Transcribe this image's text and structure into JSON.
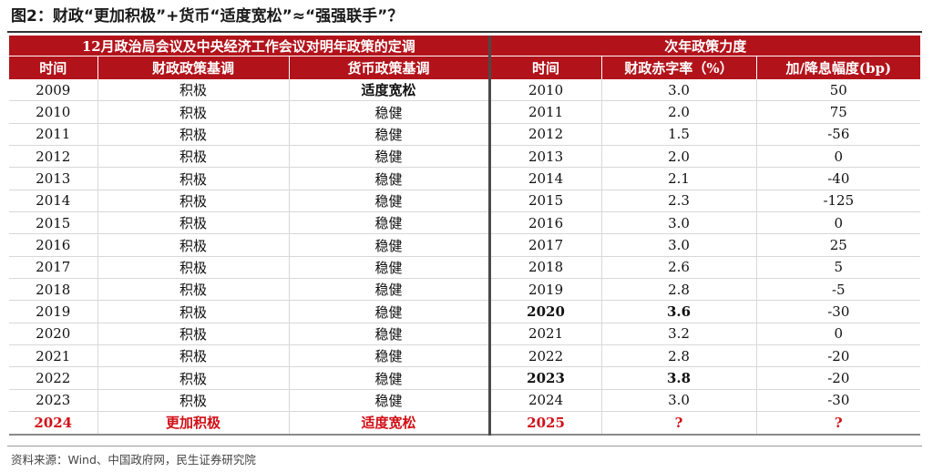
{
  "title": "图2：财政“更加积极”+货币“适度宽松”≈“强强联手”？",
  "table": {
    "left_banner": "12月政治局会议及中央经济工作会议对明年政策的定调",
    "right_banner": "次年政策力度",
    "headers": [
      "时间",
      "财政政策基调",
      "货币政策基调",
      "时间",
      "财政赤字率（%）",
      "加/降息幅度(bp)"
    ],
    "rows": [
      [
        "2009",
        "积极",
        "适度宽松",
        "2010",
        "3.0",
        "50"
      ],
      [
        "2010",
        "积极",
        "稳健",
        "2011",
        "2.0",
        "75"
      ],
      [
        "2011",
        "积极",
        "稳健",
        "2012",
        "1.5",
        "-56"
      ],
      [
        "2012",
        "积极",
        "稳健",
        "2013",
        "2.0",
        "0"
      ],
      [
        "2013",
        "积极",
        "稳健",
        "2014",
        "2.1",
        "-40"
      ],
      [
        "2014",
        "积极",
        "稳健",
        "2015",
        "2.3",
        "-125"
      ],
      [
        "2015",
        "积极",
        "稳健",
        "2016",
        "3.0",
        "0"
      ],
      [
        "2016",
        "积极",
        "稳健",
        "2017",
        "3.0",
        "25"
      ],
      [
        "2017",
        "积极",
        "稳健",
        "2018",
        "2.6",
        "5"
      ],
      [
        "2018",
        "积极",
        "稳健",
        "2019",
        "2.8",
        "-5"
      ],
      [
        "2019",
        "积极",
        "稳健",
        "2020",
        "3.6",
        "-30"
      ],
      [
        "2020",
        "积极",
        "稳健",
        "2021",
        "3.2",
        "0"
      ],
      [
        "2021",
        "积极",
        "稳健",
        "2022",
        "2.8",
        "-20"
      ],
      [
        "2022",
        "积极",
        "稳健",
        "2023",
        "3.8",
        "-20"
      ],
      [
        "2023",
        "积极",
        "稳健",
        "2024",
        "3.0",
        "-30"
      ],
      [
        "2024",
        "更加积极",
        "适度宽松",
        "2025",
        "?",
        "?"
      ]
    ]
  },
  "source": "资料来源：Wind、中国政府网，民生证券研究院",
  "colors": {
    "header_bg": "#b2131b",
    "highlight_text": "#d10f16"
  }
}
